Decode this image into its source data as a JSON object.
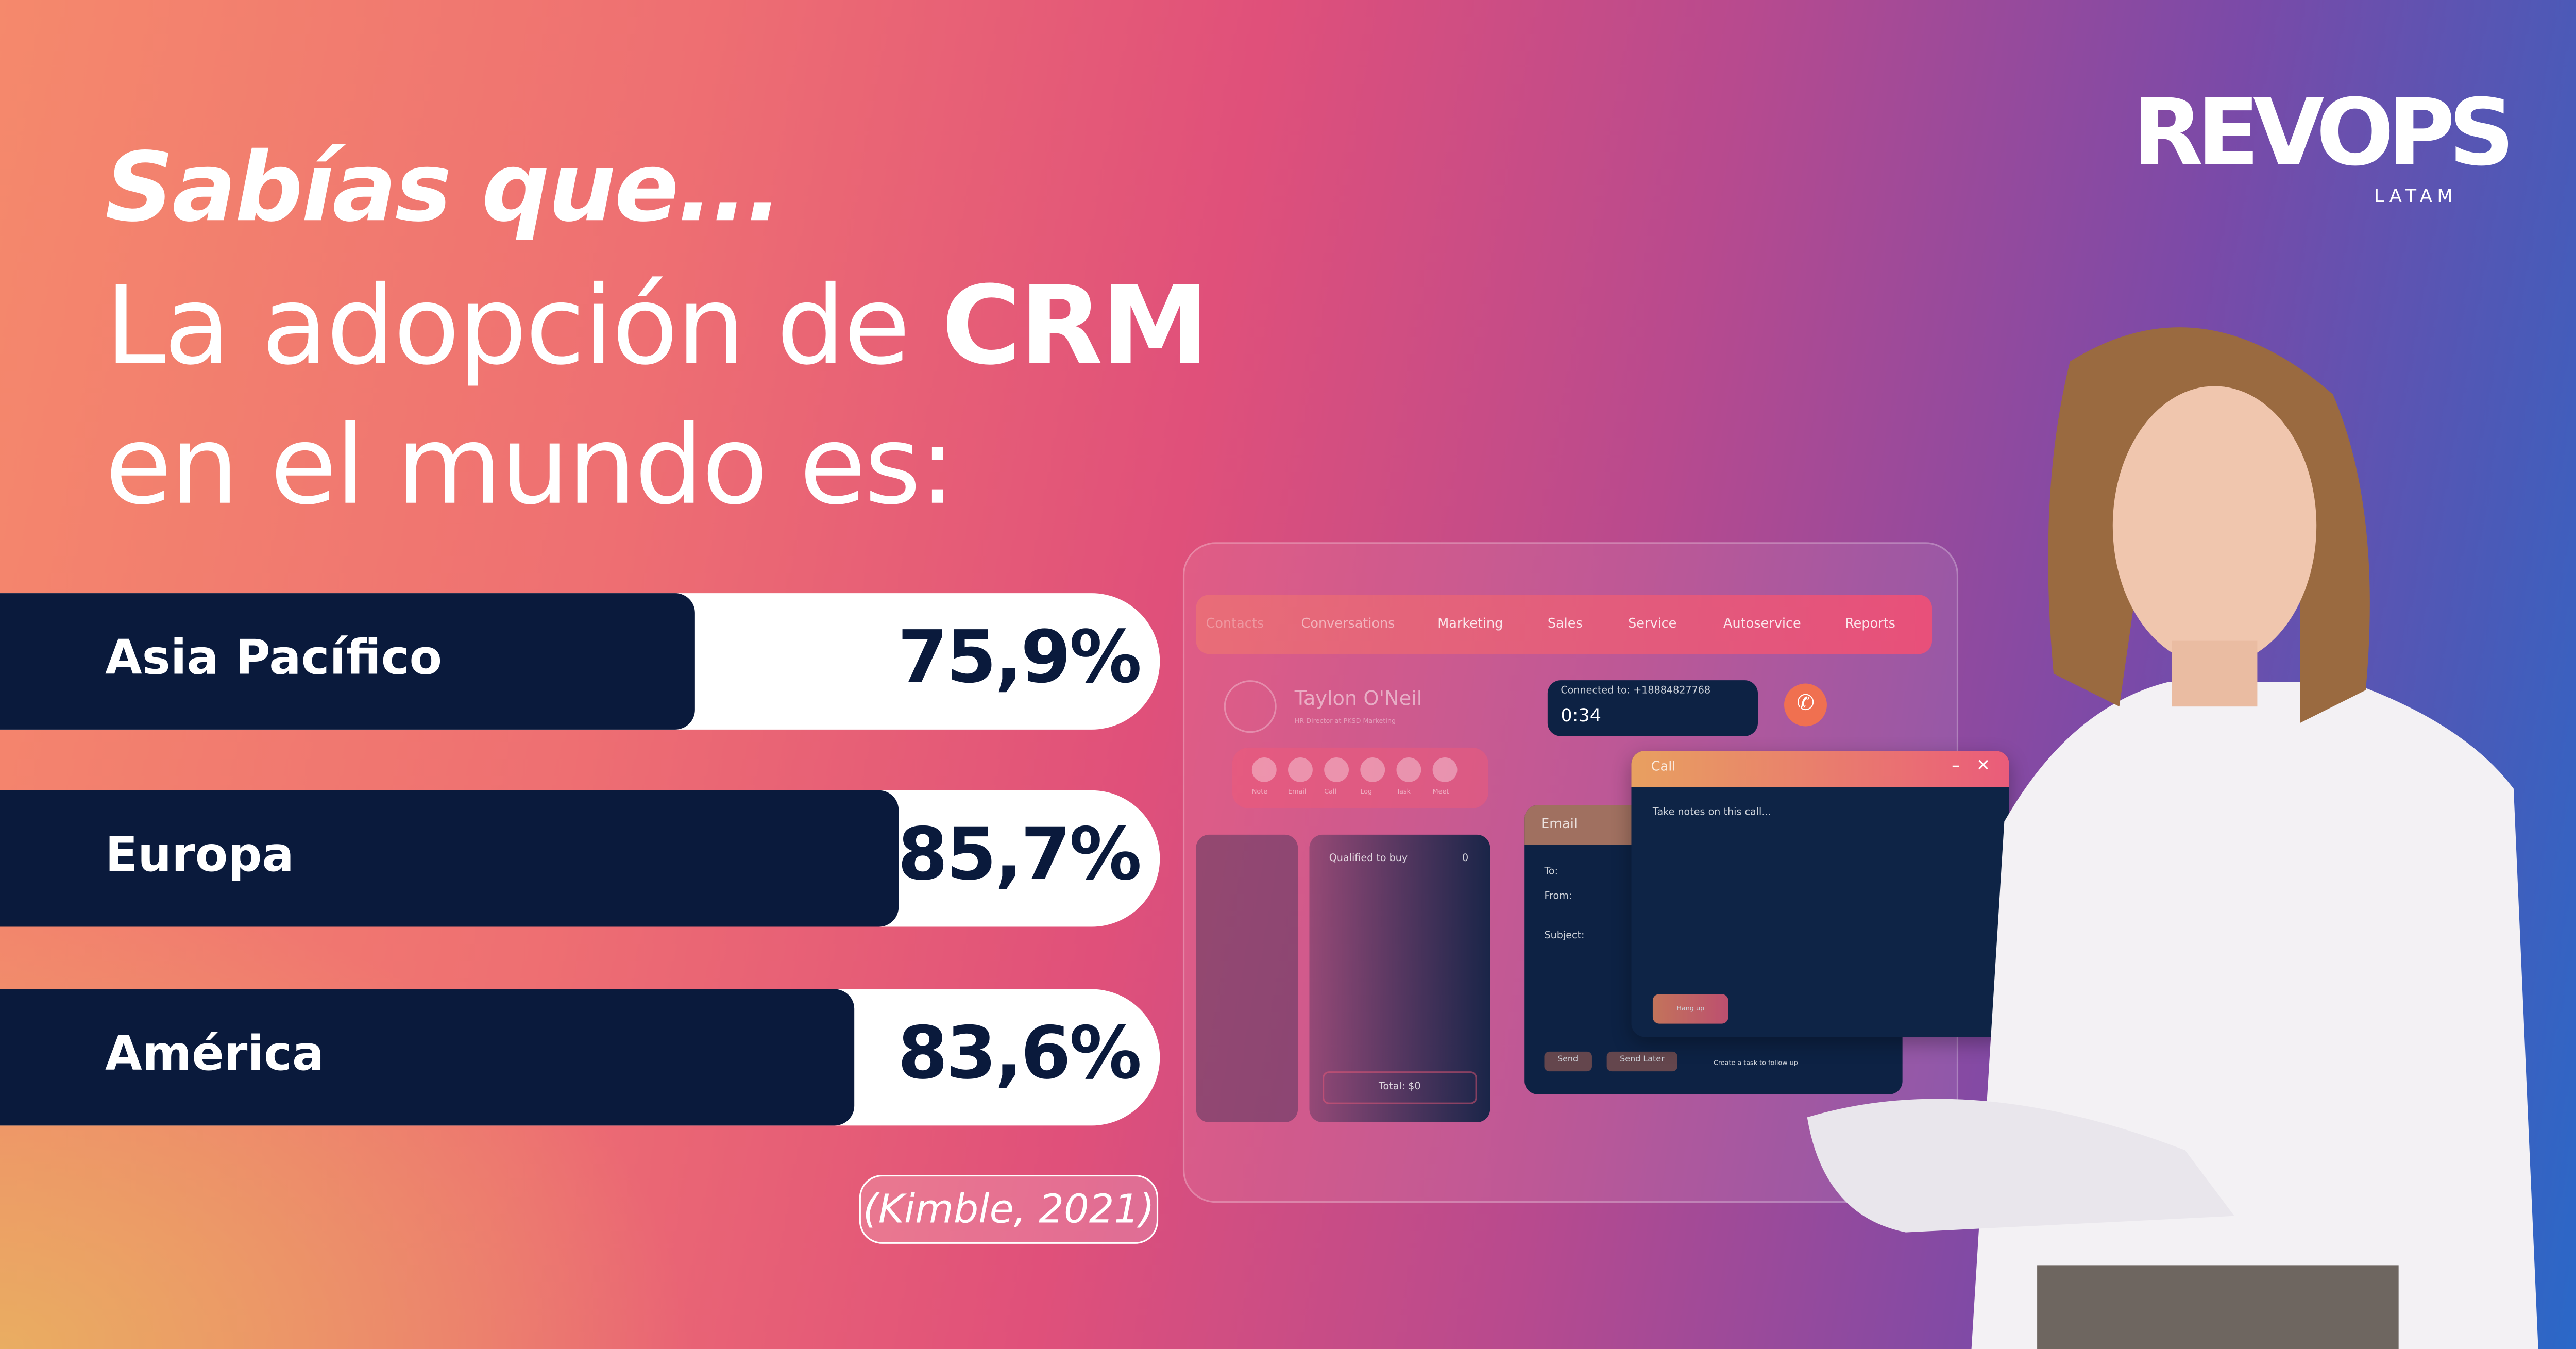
{
  "heading": {
    "kicker": "Sabías que...",
    "line1_pre": "La adopción de ",
    "line1_bold": "CRM",
    "line2": "en el mundo es:"
  },
  "chart_data": {
    "type": "bar",
    "orientation": "horizontal",
    "categories": [
      "Asia Pacífico",
      "Europa",
      "América"
    ],
    "values": [
      75.9,
      85.7,
      83.6
    ],
    "value_labels": [
      "75,9%",
      "85,7%",
      "83,6%"
    ],
    "unit": "%"
  },
  "source": "(Kimble, 2021)",
  "logo": {
    "name": "REVOPS",
    "sub": "LATAM"
  },
  "crm_mock": {
    "nav": [
      "Contacts",
      "Conversations",
      "Marketing",
      "Sales",
      "Service",
      "Autoservice",
      "Reports"
    ],
    "contact_name": "Taylon O'Neil",
    "contact_sub": "HR Director at PKSD Marketing",
    "actions": [
      "Note",
      "Email",
      "Call",
      "Log",
      "Task",
      "Meet"
    ],
    "connected": "Connected to: +18884827768",
    "timer": "0:34",
    "call_title": "Call",
    "call_notes": "Take notes on this call...",
    "hang_up": "Hang up",
    "email_title": "Email",
    "email_fields": [
      "To:",
      "From:",
      "Subject:"
    ],
    "send": "Send",
    "send_later": "Send Later",
    "follow_up": "Create a task to follow up",
    "pipeline_col": "Qualified to buy",
    "pipeline_count": "0",
    "total": "Total: $0"
  },
  "colors": {
    "bar": "#0a1a3c",
    "track": "#ffffff",
    "text": "#ffffff"
  }
}
